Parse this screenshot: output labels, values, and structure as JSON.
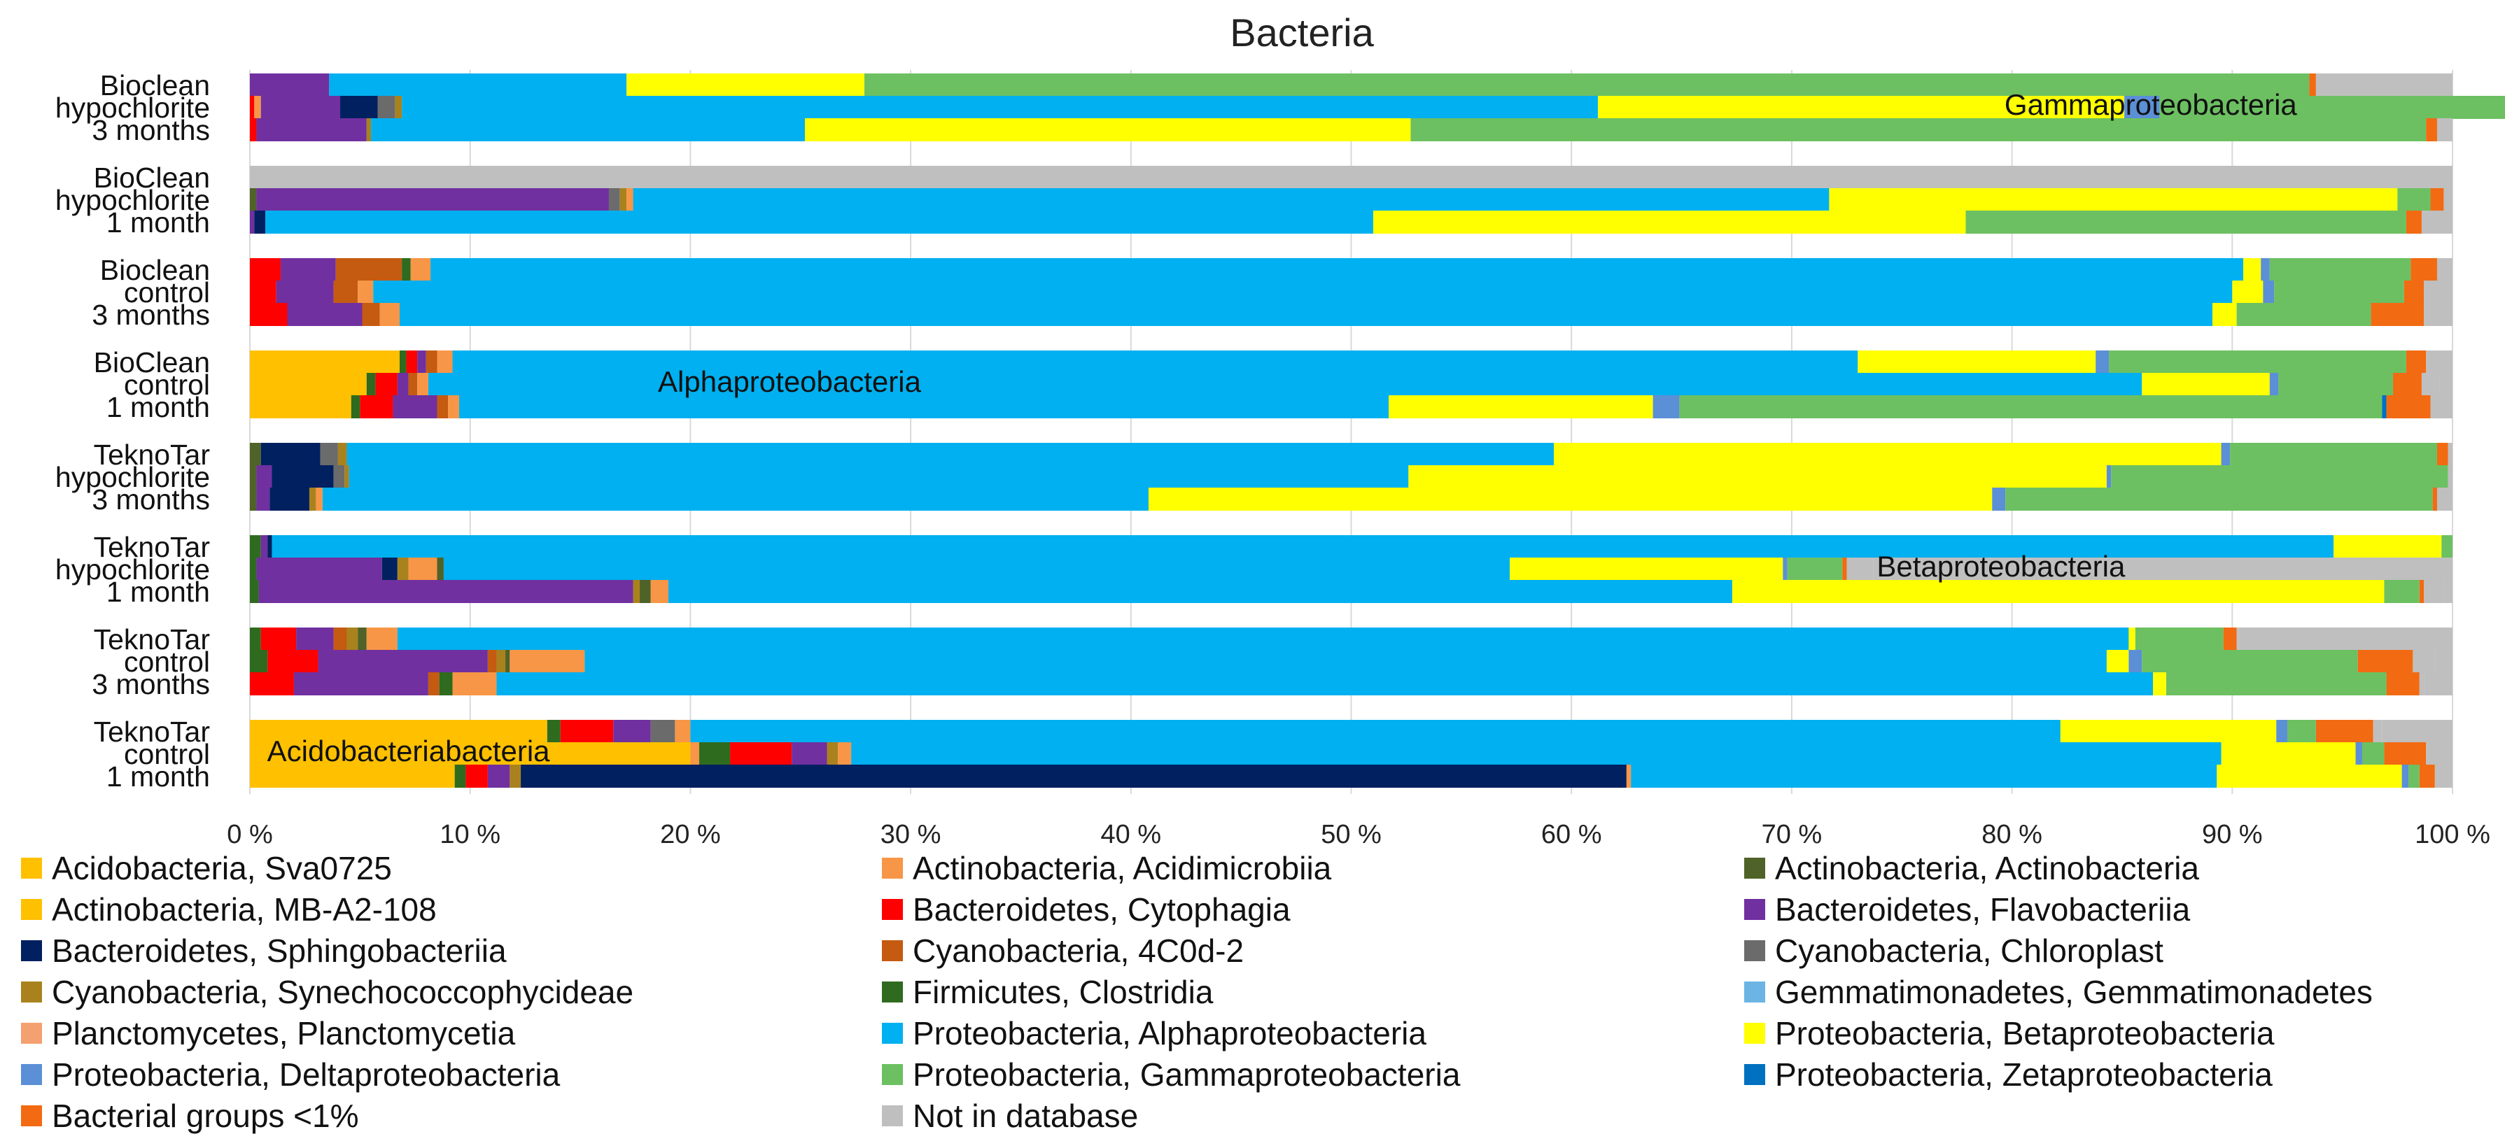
{
  "chart_data": {
    "type": "bar",
    "orientation": "horizontal",
    "stacked": "percent",
    "title": "Bacteria",
    "xlabel": "",
    "ylabel": "",
    "xlim": [
      0,
      100
    ],
    "x_ticks": [
      "0 %",
      "10 %",
      "20 %",
      "30 %",
      "40 %",
      "50 %",
      "60 %",
      "70 %",
      "80 %",
      "90 %",
      "100 %"
    ],
    "grid": "vertical",
    "legend_position": "bottom",
    "categories": [
      "Acidobacteria, Sva0725",
      "Actinobacteria, Acidimicrobiia",
      "Actinobacteria, Actinobacteria",
      "Actinobacteria, MB-A2-108",
      "Bacteroidetes, Cytophagia",
      "Bacteroidetes, Flavobacteriia",
      "Bacteroidetes, Sphingobacteriia",
      "Cyanobacteria, 4C0d-2",
      "Cyanobacteria, Chloroplast",
      "Cyanobacteria, Synechococcophycideae",
      "Firmicutes, Clostridia",
      "Gemmatimonadetes, Gemmatimonadetes",
      "Planctomycetes, Planctomycetia",
      "Proteobacteria, Alphaproteobacteria",
      "Proteobacteria, Betaproteobacteria",
      "Proteobacteria, Deltaproteobacteria",
      "Proteobacteria, Gammaproteobacteria",
      "Proteobacteria, Zetaproteobacteria",
      "Bacterial groups <1%",
      "Not in database"
    ],
    "colors": [
      "#FFC000",
      "#F79646",
      "#4F6228",
      "#FFC000",
      "#FF0000",
      "#7030A0",
      "#002060",
      "#C55A11",
      "#6B6B6B",
      "#A9821E",
      "#2E6B1F",
      "#6CB4E4",
      "#F4A070",
      "#00B0F0",
      "#FFFF00",
      "#5B8FD6",
      "#6CC061",
      "#0070C0",
      "#F26A12",
      "#BFBFBF"
    ],
    "groups": [
      "Bioclean hypochlorite 3 months",
      "BioClean hypochlorite 1 month",
      "Bioclean control 3 months",
      "BioClean control 1 month",
      "TeknoTar hypochlorite 3 months",
      "TeknoTar hypochlorite 1 month",
      "TeknoTar control 3 months",
      "TeknoTar control 1 month"
    ],
    "group_labels": [
      [
        "Bioclean",
        "hypochlorite",
        "3 months"
      ],
      [
        "BioClean",
        "hypochlorite",
        "1 month"
      ],
      [
        "Bioclean",
        "control",
        "3 months"
      ],
      [
        "BioClean",
        "control",
        "1 month"
      ],
      [
        "TeknoTar",
        "hypochlorite",
        "3 months"
      ],
      [
        "TeknoTar",
        "hypochlorite",
        "1 month"
      ],
      [
        "TeknoTar",
        "control",
        "3 months"
      ],
      [
        "TeknoTar",
        "control",
        "1 month"
      ]
    ],
    "bars": [
      [
        [
          5,
          3.6
        ],
        [
          13,
          13.5
        ],
        [
          14,
          10.8
        ],
        [
          16,
          65.6
        ],
        [
          18,
          0.3
        ],
        [
          19,
          6.2
        ]
      ],
      [
        [
          4,
          0.2
        ],
        [
          1,
          0.3
        ],
        [
          5,
          3.6
        ],
        [
          6,
          1.7
        ],
        [
          8,
          0.8
        ],
        [
          9,
          0.3
        ],
        [
          13,
          54.3
        ],
        [
          14,
          23.9
        ],
        [
          15,
          1.6
        ],
        [
          16,
          17.0
        ],
        [
          18,
          0.8
        ],
        [
          19,
          0.5
        ]
      ],
      [
        [
          4,
          0.3
        ],
        [
          5,
          5
        ],
        [
          9,
          0.2
        ],
        [
          13,
          19.7
        ],
        [
          14,
          27.5
        ],
        [
          16,
          46.1
        ],
        [
          18,
          0.5
        ],
        [
          19,
          0.7
        ]
      ],
      [
        [
          19,
          100
        ]
      ],
      [
        [
          2,
          0.3
        ],
        [
          5,
          16
        ],
        [
          8,
          0.5
        ],
        [
          9,
          0.3
        ],
        [
          1,
          0.3
        ],
        [
          13,
          54.3
        ],
        [
          14,
          25.8
        ],
        [
          16,
          1.5
        ],
        [
          18,
          0.6
        ],
        [
          19,
          0.4
        ]
      ],
      [
        [
          5,
          0.2
        ],
        [
          6,
          0.5
        ],
        [
          13,
          50.3
        ],
        [
          14,
          26.9
        ],
        [
          16,
          20
        ],
        [
          18,
          0.7
        ],
        [
          19,
          1.4
        ]
      ],
      [
        [
          4,
          1.4
        ],
        [
          5,
          2.5
        ],
        [
          7,
          3
        ],
        [
          10,
          0.4
        ],
        [
          1,
          0.9
        ],
        [
          13,
          82.3
        ],
        [
          14,
          0.8
        ],
        [
          15,
          0.4
        ],
        [
          16,
          6.4
        ],
        [
          18,
          1.2
        ],
        [
          19,
          0.7
        ]
      ],
      [
        [
          4,
          1.2
        ],
        [
          5,
          2.6
        ],
        [
          7,
          1.1
        ],
        [
          1,
          0.7
        ],
        [
          13,
          84.4
        ],
        [
          14,
          1.4
        ],
        [
          15,
          0.5
        ],
        [
          16,
          5.9
        ],
        [
          18,
          0.9
        ],
        [
          19,
          1.3
        ]
      ],
      [
        [
          4,
          1.7
        ],
        [
          5,
          3.4
        ],
        [
          7,
          0.8
        ],
        [
          1,
          0.9
        ],
        [
          13,
          82.3
        ],
        [
          14,
          1.1
        ],
        [
          16,
          6.1
        ],
        [
          18,
          2.4
        ],
        [
          19,
          0.3
        ]
      ],
      [
        [
          0,
          6.8
        ],
        [
          10,
          0.3
        ],
        [
          4,
          0.5
        ],
        [
          5,
          0.4
        ],
        [
          7,
          0.5
        ],
        [
          1,
          0.7
        ],
        [
          13,
          63.8
        ],
        [
          14,
          10.8
        ],
        [
          15,
          0.6
        ],
        [
          16,
          13.5
        ],
        [
          18,
          0.9
        ],
        [
          19,
          1.2
        ]
      ],
      [
        [
          0,
          5.3
        ],
        [
          10,
          0.4
        ],
        [
          4,
          1
        ],
        [
          5,
          0.5
        ],
        [
          7,
          0.4
        ],
        [
          1,
          0.5
        ],
        [
          13,
          77.8
        ],
        [
          14,
          5.8
        ],
        [
          15,
          0.4
        ],
        [
          16,
          5.2
        ],
        [
          18,
          1.3
        ],
        [
          19,
          0.8
        ]
      ],
      [
        [
          0,
          4.6
        ],
        [
          10,
          0.4
        ],
        [
          4,
          1.5
        ],
        [
          5,
          2
        ],
        [
          7,
          0.5
        ],
        [
          1,
          0.5
        ],
        [
          13,
          42.2
        ],
        [
          14,
          12
        ],
        [
          15,
          1.2
        ],
        [
          16,
          31.9
        ],
        [
          17,
          0.2
        ],
        [
          18,
          2
        ],
        [
          19,
          1
        ]
      ],
      [
        [
          2,
          0.5
        ],
        [
          6,
          2.7
        ],
        [
          8,
          0.8
        ],
        [
          9,
          0.4
        ],
        [
          13,
          54.8
        ],
        [
          14,
          30.3
        ],
        [
          15,
          0.4
        ],
        [
          16,
          9.4
        ],
        [
          18,
          0.5
        ],
        [
          19,
          0.2
        ]
      ],
      [
        [
          2,
          0.3
        ],
        [
          5,
          0.7
        ],
        [
          6,
          2.8
        ],
        [
          8,
          0.5
        ],
        [
          9,
          0.2
        ],
        [
          13,
          48.1
        ],
        [
          14,
          31.7
        ],
        [
          15,
          0.2
        ],
        [
          16,
          15.3
        ],
        [
          19,
          0.2
        ]
      ],
      [
        [
          2,
          0.3
        ],
        [
          5,
          0.6
        ],
        [
          6,
          1.8
        ],
        [
          9,
          0.3
        ],
        [
          1,
          0.3
        ],
        [
          13,
          37.5
        ],
        [
          14,
          38.3
        ],
        [
          15,
          0.6
        ],
        [
          16,
          19.4
        ],
        [
          18,
          0.2
        ],
        [
          19,
          0.7
        ]
      ],
      [
        [
          10,
          0.5
        ],
        [
          5,
          0.3
        ],
        [
          6,
          0.2
        ],
        [
          13,
          93.6
        ],
        [
          14,
          4.9
        ],
        [
          16,
          0.5
        ]
      ],
      [
        [
          10,
          0.3
        ],
        [
          5,
          5.7
        ],
        [
          6,
          0.7
        ],
        [
          9,
          0.5
        ],
        [
          1,
          1.3
        ],
        [
          2,
          0.3
        ],
        [
          13,
          48.4
        ],
        [
          14,
          12.4
        ],
        [
          15,
          0.2
        ],
        [
          16,
          2.5
        ],
        [
          18,
          0.2
        ],
        [
          19,
          1.2
        ]
      ],
      [
        [
          10,
          0.4
        ],
        [
          5,
          17
        ],
        [
          9,
          0.3
        ],
        [
          2,
          0.5
        ],
        [
          1,
          0.8
        ],
        [
          13,
          48.3
        ],
        [
          14,
          29.6
        ],
        [
          16,
          1.6
        ],
        [
          18,
          0.2
        ],
        [
          19,
          0.9
        ]
      ],
      [
        [
          10,
          0.5
        ],
        [
          4,
          1.6
        ],
        [
          5,
          1.7
        ],
        [
          7,
          0.6
        ],
        [
          9,
          0.5
        ],
        [
          2,
          0.4
        ],
        [
          1,
          1.4
        ],
        [
          13,
          78.6
        ],
        [
          14,
          0.3
        ],
        [
          16,
          4
        ],
        [
          18,
          0.6
        ],
        [
          19,
          0.1
        ]
      ],
      [
        [
          10,
          0.8
        ],
        [
          4,
          2.3
        ],
        [
          5,
          7.7
        ],
        [
          7,
          0.4
        ],
        [
          9,
          0.4
        ],
        [
          2,
          0.2
        ],
        [
          1,
          3.4
        ],
        [
          13,
          69.1
        ],
        [
          14,
          1
        ],
        [
          15,
          0.6
        ],
        [
          16,
          9.8
        ],
        [
          18,
          2.5
        ],
        [
          19,
          1
        ]
      ],
      [
        [
          4,
          2
        ],
        [
          5,
          6.1
        ],
        [
          7,
          0.5
        ],
        [
          10,
          0.6
        ],
        [
          1,
          2
        ],
        [
          13,
          75.2
        ],
        [
          14,
          0.6
        ],
        [
          16,
          10
        ],
        [
          18,
          1.5
        ],
        [
          19,
          0.2
        ]
      ],
      [
        [
          0,
          13.5
        ],
        [
          10,
          0.6
        ],
        [
          4,
          2.4
        ],
        [
          5,
          1.7
        ],
        [
          8,
          1.1
        ],
        [
          1,
          0.7
        ],
        [
          13,
          62.2
        ],
        [
          14,
          9.8
        ],
        [
          15,
          0.5
        ],
        [
          16,
          1.3
        ],
        [
          18,
          2.6
        ],
        [
          19,
          0.4
        ]
      ],
      [
        [
          0,
          5.3
        ],
        [
          3,
          14.7
        ],
        [
          1,
          0.4
        ],
        [
          10,
          1.4
        ],
        [
          4,
          2.8
        ],
        [
          5,
          1.6
        ],
        [
          9,
          0.5
        ],
        [
          1,
          0.6
        ],
        [
          13,
          62.2
        ],
        [
          14,
          6.1
        ],
        [
          15,
          0.3
        ],
        [
          16,
          1
        ],
        [
          18,
          1.9
        ],
        [
          19,
          1.2
        ]
      ],
      [
        [
          0,
          9.3
        ],
        [
          10,
          0.5
        ],
        [
          4,
          1
        ],
        [
          5,
          1
        ],
        [
          9,
          0.5
        ],
        [
          6,
          50.2
        ],
        [
          1,
          0.2
        ],
        [
          13,
          26.6
        ],
        [
          14,
          8.4
        ],
        [
          15,
          0.3
        ],
        [
          16,
          0.5
        ],
        [
          18,
          0.7
        ],
        [
          19,
          0.8
        ]
      ]
    ],
    "annotations": [
      {
        "text": "Gammaproteobacteria",
        "x": 86.3,
        "row": 1
      },
      {
        "text": "Alphaproteobacteria",
        "x": 24.5,
        "row": 10
      },
      {
        "text": "Betaproteobacteria",
        "x": 79.5,
        "row": 16
      },
      {
        "text": "Acidobacteriabacteria",
        "x": 7.2,
        "row": 22
      }
    ]
  }
}
